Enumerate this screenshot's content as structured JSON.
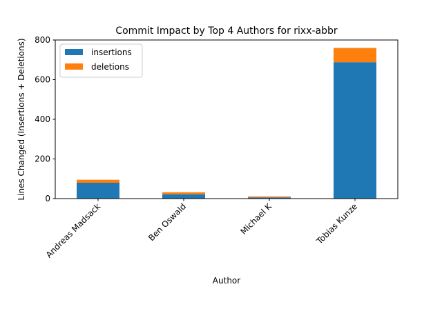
{
  "chart_data": {
    "type": "bar",
    "stacked": true,
    "title": "Commit Impact by Top 4 Authors for rixx-abbr",
    "xlabel": "Author",
    "ylabel": "Lines Changed (Insertions + Deletions)",
    "categories": [
      "Andreas Madsack",
      "Ben Oswald",
      "Michael K",
      "Tobias Kunze"
    ],
    "series": [
      {
        "name": "insertions",
        "color": "#1f77b4",
        "values": [
          80,
          22,
          6,
          688
        ]
      },
      {
        "name": "deletions",
        "color": "#ff7f0e",
        "values": [
          15,
          10,
          5,
          72
        ]
      }
    ],
    "ylim": [
      0,
      800
    ],
    "yticks": [
      0,
      200,
      400,
      600,
      800
    ],
    "grid": false,
    "legend_position": "top-left"
  }
}
